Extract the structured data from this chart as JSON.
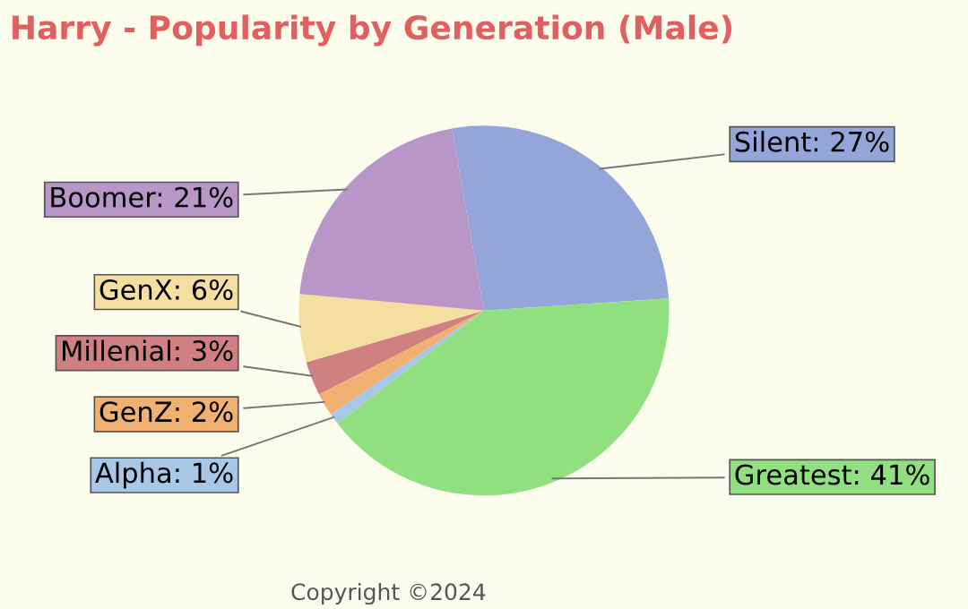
{
  "chart_data": {
    "type": "pie",
    "title": "Harry - Popularity by Generation (Male)",
    "categories": [
      "Silent",
      "Greatest",
      "Alpha",
      "GenZ",
      "Millenial",
      "GenX",
      "Boomer"
    ],
    "values": [
      27,
      41,
      1,
      2,
      3,
      6,
      21
    ],
    "colors": [
      "#94a6d9",
      "#90e080",
      "#a8c8e8",
      "#f0b070",
      "#d08080",
      "#f5dfa0",
      "#b896c8"
    ],
    "value_labels": [
      "27%",
      "41%",
      "1%",
      "2%",
      "3%",
      "6%",
      "21%"
    ],
    "annotations": [
      "Copyright ©2024"
    ]
  }
}
